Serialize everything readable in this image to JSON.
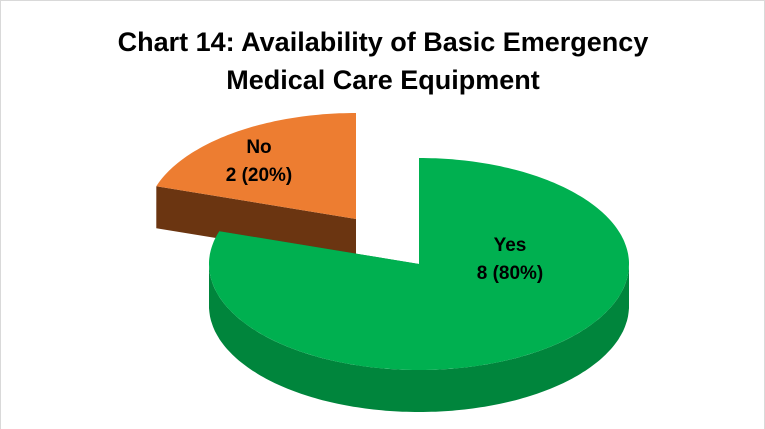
{
  "chart_data": {
    "type": "pie",
    "title": "Chart 14: Availability of Basic Emergency Medical Care Equipment",
    "categories": [
      "Yes",
      "No"
    ],
    "values": [
      8,
      2
    ],
    "value_labels": [
      "8 (80%)",
      "2 (20%)"
    ],
    "colors": [
      "#00b050",
      "#ed7d31"
    ],
    "side_colors": [
      "#00853c",
      "#6b3511"
    ]
  }
}
